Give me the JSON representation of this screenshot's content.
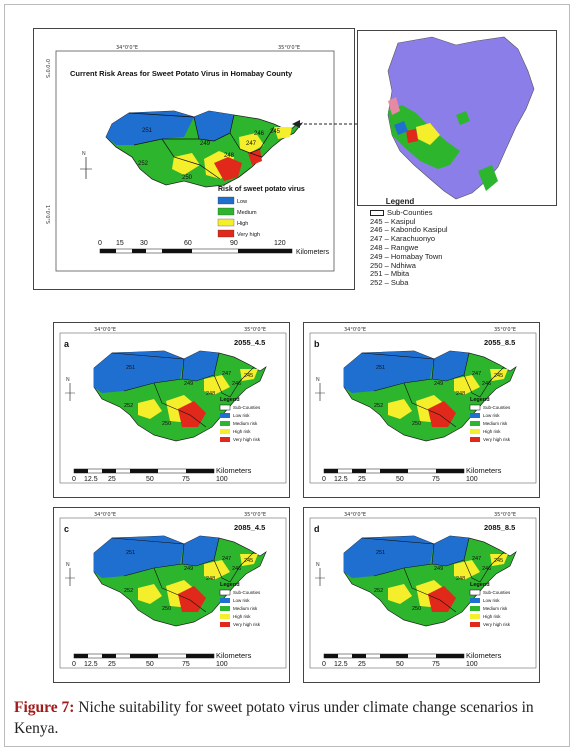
{
  "top_map": {
    "title": "Current Risk Areas for Sweet Potato Virus in Homabay County",
    "lon_ticks": [
      "34°0'0\"E",
      "35°0'0\"E"
    ],
    "lat_ticks": [
      "0°0'0\"S",
      "1°0'0\"S"
    ],
    "north": "N",
    "legend_title": "Risk of sweet potato virus",
    "legend": [
      {
        "label": "Low",
        "color": "#1f6fd1"
      },
      {
        "label": "Medium",
        "color": "#2db52d"
      },
      {
        "label": "High",
        "color": "#f5ee2a"
      },
      {
        "label": "Very high",
        "color": "#e0281b"
      }
    ],
    "scale_numbers": [
      "0",
      "15",
      "30",
      "60",
      "90",
      "120"
    ],
    "scale_unit": "Kilometers",
    "area_labels": [
      "251",
      "252",
      "250",
      "249",
      "248",
      "247",
      "246",
      "245"
    ]
  },
  "kenya_legend": {
    "title": "Legend",
    "subcounties": "Sub-Counties",
    "items": [
      "245 – Kasipul",
      "246 – Kabondo Kasipul",
      "247 – Karachuonyo",
      "248 – Rangwe",
      "249 – Homabay Town",
      "250 – Ndhiwa",
      "251 – Mbita",
      "252 – Suba"
    ]
  },
  "panels": [
    {
      "letter": "a",
      "scenario": "2055_4.5"
    },
    {
      "letter": "b",
      "scenario": "2055_8.5"
    },
    {
      "letter": "c",
      "scenario": "2085_4.5"
    },
    {
      "letter": "d",
      "scenario": "2085_8.5"
    }
  ],
  "panel_common": {
    "lon_ticks": [
      "34°0'0\"E",
      "35°0'0\"E"
    ],
    "lat_ticks": [
      "0°0'0\"S",
      "1°0'0\"S"
    ],
    "north": "N",
    "legend_title": "Legend",
    "legend": [
      {
        "label": "Sub-Counties",
        "color": "#ffffff"
      },
      {
        "label": "Low risk",
        "color": "#1f6fd1"
      },
      {
        "label": "Medium risk",
        "color": "#2db52d"
      },
      {
        "label": "High risk",
        "color": "#f5ee2a"
      },
      {
        "label": "Very high risk",
        "color": "#e0281b"
      }
    ],
    "scale_numbers": [
      "0",
      "12.5",
      "25",
      "50",
      "75",
      "100"
    ],
    "scale_unit": "Kilometers",
    "area_labels": [
      "251",
      "252",
      "250",
      "249",
      "248",
      "247",
      "246",
      "245"
    ]
  },
  "caption": {
    "label": "Figure 7:",
    "text": " Niche suitability for sweet potato virus under climate change scenarios in Kenya."
  }
}
